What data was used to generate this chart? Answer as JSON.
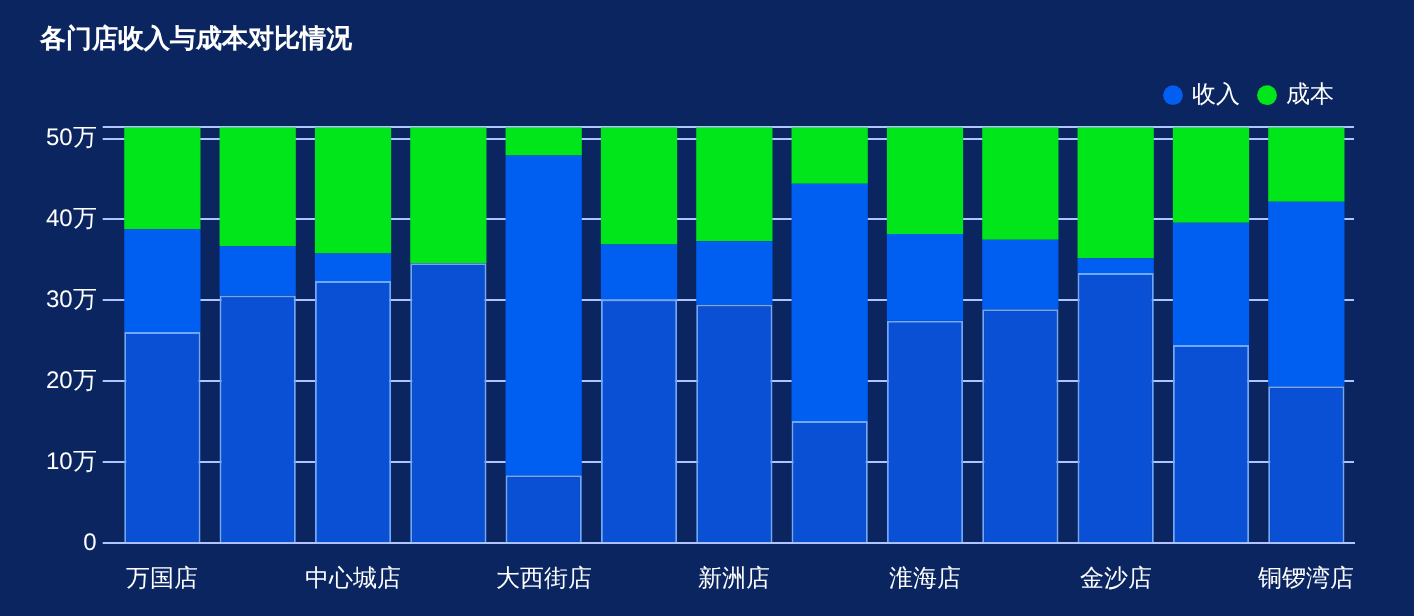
{
  "chart_data": {
    "type": "bar",
    "title": "各门店收入与成本对比情况",
    "stacked": true,
    "legend": "top right",
    "grid": "y",
    "categories": [
      "万国店",
      null,
      "中心城店",
      null,
      "大西街店",
      null,
      "新洲店",
      null,
      "淮海店",
      null,
      "金沙店",
      null,
      "铜锣湾店"
    ],
    "series": [
      {
        "color": "#0a50d4",
        "values": [
          26.1,
          30.6,
          32.4,
          34.6,
          8.4,
          30.1,
          29.5,
          15.1,
          27.5,
          28.9,
          33.4,
          24.5,
          19.4
        ]
      },
      {
        "name": "收入",
        "color": "#005ef0",
        "values": [
          12.7,
          6.1,
          3.4,
          0,
          39.5,
          6.8,
          7.8,
          29.3,
          10.7,
          8.6,
          1.8,
          15.1,
          22.8
        ]
      },
      {
        "name": "成本",
        "color": "#00e61a",
        "values": [
          12.6,
          14.7,
          15.6,
          16.8,
          3.5,
          14.5,
          14.1,
          7.0,
          13.2,
          13.9,
          16.2,
          11.8,
          9.2
        ]
      }
    ],
    "ylim": [
      0,
      51.4
    ],
    "yticks": [
      0,
      {
        "value": 10,
        "label": "10万"
      },
      {
        "value": 20,
        "label": "20万"
      },
      {
        "value": 30,
        "label": "30万"
      },
      {
        "value": 40,
        "label": "40万"
      },
      {
        "value": 50,
        "label": "50万"
      },
      {
        "value": 51.4,
        "label": null
      }
    ]
  }
}
